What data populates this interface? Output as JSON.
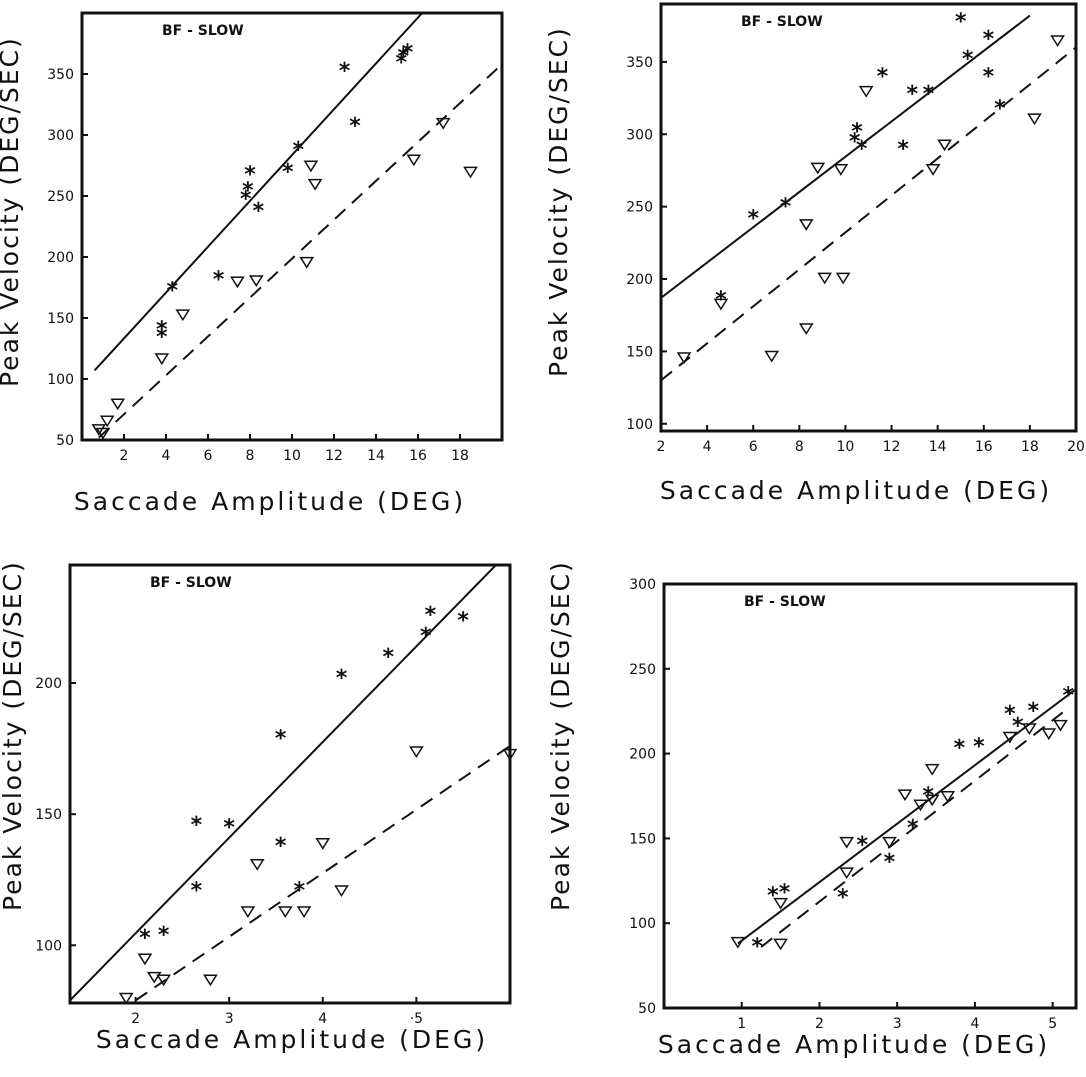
{
  "chart_data": [
    {
      "type": "scatter",
      "title": "BF - SLOW",
      "xlabel": "Saccade Amplitude (DEG)",
      "ylabel": "Peak Velocity (DEG/SEC)",
      "xlim": [
        0,
        20
      ],
      "ylim": [
        50,
        400
      ],
      "xticks": [
        "2",
        "4",
        "6",
        "8",
        "10",
        "12",
        "14",
        "16",
        "18"
      ],
      "yticks": [
        "50",
        "100",
        "150",
        "200",
        "250",
        "300",
        "350"
      ],
      "series": [
        {
          "marker": "asterisk",
          "points": [
            [
              3.8,
              143
            ],
            [
              3.8,
              137
            ],
            [
              4.3,
              175
            ],
            [
              6.5,
              184
            ],
            [
              7.8,
              250
            ],
            [
              7.9,
              257
            ],
            [
              8.0,
              270
            ],
            [
              8.4,
              240
            ],
            [
              9.8,
              272
            ],
            [
              10.3,
              290
            ],
            [
              12.5,
              355
            ],
            [
              13.0,
              310
            ],
            [
              15.2,
              362
            ],
            [
              15.3,
              367
            ],
            [
              15.5,
              370
            ]
          ]
        },
        {
          "marker": "triangle",
          "points": [
            [
              0.8,
              59
            ],
            [
              1.0,
              56
            ],
            [
              1.2,
              66
            ],
            [
              1.7,
              80
            ],
            [
              3.8,
              117
            ],
            [
              4.8,
              153
            ],
            [
              7.4,
              180
            ],
            [
              8.3,
              181
            ],
            [
              10.7,
              196
            ],
            [
              10.9,
              275
            ],
            [
              11.1,
              260
            ],
            [
              15.8,
              280
            ],
            [
              17.2,
              310
            ],
            [
              18.5,
              270
            ]
          ]
        }
      ],
      "lines": [
        {
          "style": "solid",
          "from": [
            0.6,
            107
          ],
          "to": [
            16.2,
            400
          ]
        },
        {
          "style": "dashed",
          "from": [
            0.8,
            52
          ],
          "to": [
            20,
            358
          ]
        }
      ]
    },
    {
      "type": "scatter",
      "title": "BF - SLOW",
      "xlabel": "Saccade Amplitude (DEG)",
      "ylabel": "Peak Velocity (DEG/SEC)",
      "xlim": [
        2,
        20
      ],
      "ylim": [
        95,
        390
      ],
      "xticks": [
        "2",
        "4",
        "6",
        "8",
        "10",
        "12",
        "14",
        "16",
        "18",
        "20"
      ],
      "yticks": [
        "100",
        "150",
        "200",
        "250",
        "300",
        "350"
      ],
      "series": [
        {
          "marker": "asterisk",
          "points": [
            [
              4.6,
              188
            ],
            [
              6.0,
              244
            ],
            [
              7.4,
              252
            ],
            [
              10.4,
              297
            ],
            [
              10.5,
              304
            ],
            [
              10.7,
              292
            ],
            [
              11.6,
              342
            ],
            [
              12.5,
              292
            ],
            [
              12.9,
              330
            ],
            [
              13.6,
              330
            ],
            [
              15.0,
              380
            ],
            [
              15.3,
              354
            ],
            [
              16.2,
              368
            ],
            [
              16.2,
              342
            ],
            [
              16.7,
              320
            ]
          ]
        },
        {
          "marker": "triangle",
          "points": [
            [
              3.0,
              146
            ],
            [
              4.6,
              183
            ],
            [
              6.8,
              147
            ],
            [
              8.3,
              238
            ],
            [
              8.3,
              166
            ],
            [
              8.8,
              277
            ],
            [
              9.1,
              201
            ],
            [
              9.8,
              276
            ],
            [
              9.9,
              201
            ],
            [
              10.9,
              330
            ],
            [
              13.8,
              276
            ],
            [
              14.3,
              293
            ],
            [
              18.2,
              311
            ],
            [
              19.2,
              365
            ]
          ]
        }
      ],
      "lines": [
        {
          "style": "solid",
          "from": [
            2,
            187
          ],
          "to": [
            18,
            382
          ]
        },
        {
          "style": "dashed",
          "from": [
            2,
            130
          ],
          "to": [
            20,
            360
          ]
        }
      ]
    },
    {
      "type": "scatter",
      "title": "BF - SLOW",
      "xlabel": "Saccade Amplitude (DEG)",
      "ylabel": "Peak Velocity (DEG/SEC)",
      "xlim": [
        1.3,
        6.0
      ],
      "ylim": [
        78,
        245
      ],
      "xticks": [
        "2",
        "3",
        "4",
        "·5"
      ],
      "yticks": [
        "100",
        "150",
        "200"
      ],
      "series": [
        {
          "marker": "asterisk",
          "points": [
            [
              2.1,
              104
            ],
            [
              2.3,
              105
            ],
            [
              2.65,
              122
            ],
            [
              2.65,
              147
            ],
            [
              3.0,
              146
            ],
            [
              3.55,
              139
            ],
            [
              3.55,
              180
            ],
            [
              3.75,
              122
            ],
            [
              4.2,
              203
            ],
            [
              4.7,
              211
            ],
            [
              5.1,
              219
            ],
            [
              5.15,
              227
            ],
            [
              5.5,
              225
            ]
          ]
        },
        {
          "marker": "triangle",
          "points": [
            [
              1.9,
              80
            ],
            [
              2.1,
              95
            ],
            [
              2.2,
              88
            ],
            [
              2.3,
              87
            ],
            [
              2.8,
              87
            ],
            [
              3.2,
              113
            ],
            [
              3.3,
              131
            ],
            [
              3.6,
              113
            ],
            [
              3.8,
              113
            ],
            [
              4.0,
              139
            ],
            [
              4.2,
              121
            ],
            [
              5.0,
              174
            ],
            [
              6.0,
              173
            ]
          ]
        }
      ],
      "lines": [
        {
          "style": "solid",
          "from": [
            1.3,
            79
          ],
          "to": [
            5.85,
            245
          ]
        },
        {
          "style": "dashed",
          "from": [
            2.0,
            79
          ],
          "to": [
            6.0,
            176
          ]
        }
      ]
    },
    {
      "type": "scatter",
      "title": "BF - SLOW",
      "xlabel": "Saccade Amplitude (DEG)",
      "ylabel": "Peak Velocity (DEG/SEC)",
      "xlim": [
        0,
        5.3
      ],
      "ylim": [
        50,
        300
      ],
      "xticks": [
        "1",
        "2",
        "3",
        "4",
        "5"
      ],
      "yticks": [
        "50",
        "100",
        "150",
        "200",
        "250",
        "300"
      ],
      "series": [
        {
          "marker": "asterisk",
          "points": [
            [
              1.2,
              88
            ],
            [
              1.4,
              118
            ],
            [
              1.55,
              120
            ],
            [
              2.3,
              117
            ],
            [
              2.55,
              148
            ],
            [
              2.9,
              138
            ],
            [
              3.2,
              158
            ],
            [
              3.4,
              177
            ],
            [
              3.8,
              205
            ],
            [
              4.05,
              206
            ],
            [
              4.45,
              225
            ],
            [
              4.55,
              218
            ],
            [
              4.75,
              227
            ],
            [
              5.2,
              236
            ]
          ]
        },
        {
          "marker": "triangle",
          "points": [
            [
              0.95,
              89
            ],
            [
              1.5,
              112
            ],
            [
              1.5,
              88
            ],
            [
              2.35,
              148
            ],
            [
              2.35,
              130
            ],
            [
              2.9,
              148
            ],
            [
              3.1,
              176
            ],
            [
              3.3,
              170
            ],
            [
              3.45,
              191
            ],
            [
              3.45,
              173
            ],
            [
              3.65,
              175
            ],
            [
              4.45,
              210
            ],
            [
              4.7,
              215
            ],
            [
              4.95,
              212
            ],
            [
              5.1,
              217
            ]
          ]
        }
      ],
      "lines": [
        {
          "style": "solid",
          "from": [
            0.95,
            88
          ],
          "to": [
            5.3,
            238
          ]
        },
        {
          "style": "dashed",
          "from": [
            1.25,
            86
          ],
          "to": [
            5.15,
            225
          ]
        }
      ]
    }
  ]
}
